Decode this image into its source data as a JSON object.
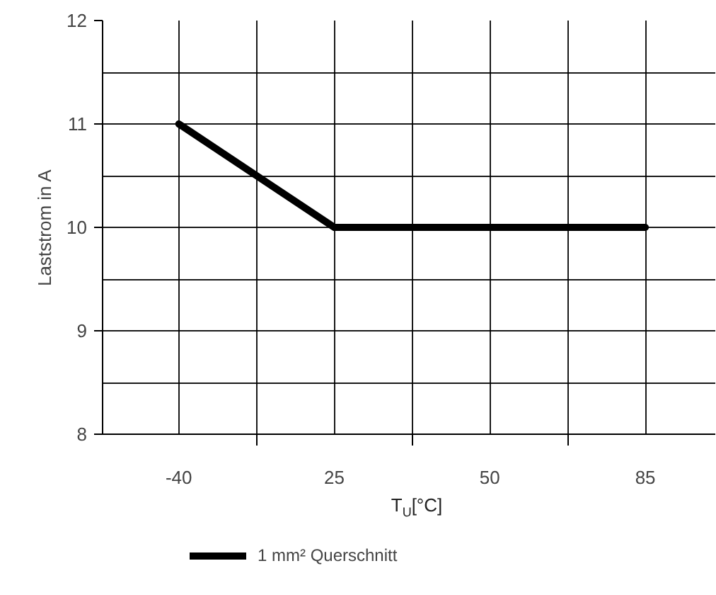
{
  "chart_data": {
    "type": "line",
    "xlabel": "T$_{U}$[°C]",
    "ylabel": "Laststrom in A",
    "categories": [
      "-40",
      "25",
      "50",
      "85"
    ],
    "series": [
      {
        "name": "1 mm² Querschnitt",
        "color": "#000000",
        "values": [
          11,
          10,
          10,
          10
        ]
      }
    ],
    "ylim": [
      8,
      12
    ],
    "yticks": [
      8,
      9,
      10,
      11,
      12
    ],
    "grid": true,
    "legend": "bottom left",
    "marker": "none",
    "line_style": "solid"
  }
}
